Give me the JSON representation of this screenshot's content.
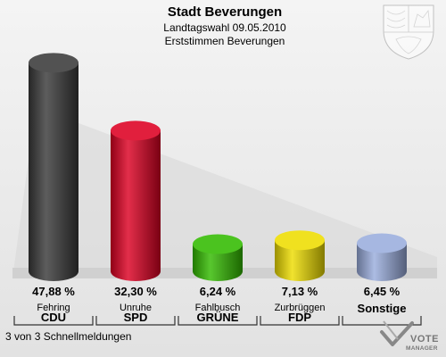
{
  "header": {
    "title": "Stadt Beverungen",
    "subtitle1": "Landtagswahl 09.05.2010",
    "subtitle2": "Erststimmen Beverungen"
  },
  "chart_data": {
    "type": "bar",
    "title": "Stadt Beverungen",
    "subtitle": "Landtagswahl 09.05.2010 — Erststimmen Beverungen",
    "categories": [
      "CDU",
      "SPD",
      "GRÜNE",
      "FDP",
      "Sonstige"
    ],
    "candidates": [
      "Fehring",
      "Unruhe",
      "Fahlbusch",
      "Zurbrüggen",
      ""
    ],
    "values": [
      47.88,
      32.3,
      6.24,
      7.13,
      6.45
    ],
    "value_labels": [
      "47,88 %",
      "32,30 %",
      "6,24 %",
      "7,13 %",
      "6,45 %"
    ],
    "colors": [
      "#3a3a3a",
      "#dd0022",
      "#33bb00",
      "#eedd00",
      "#9aaddd"
    ],
    "ylim": [
      0,
      50
    ],
    "grid": false,
    "legend": "none"
  },
  "footer": {
    "status": "3 von 3 Schnellmeldungen",
    "logo_text_top": "VOTE",
    "logo_text_bottom": "MANAGER"
  },
  "icons": {
    "crest": "nrw-coat-of-arms-icon",
    "logo": "vote-manager-logo-icon"
  }
}
